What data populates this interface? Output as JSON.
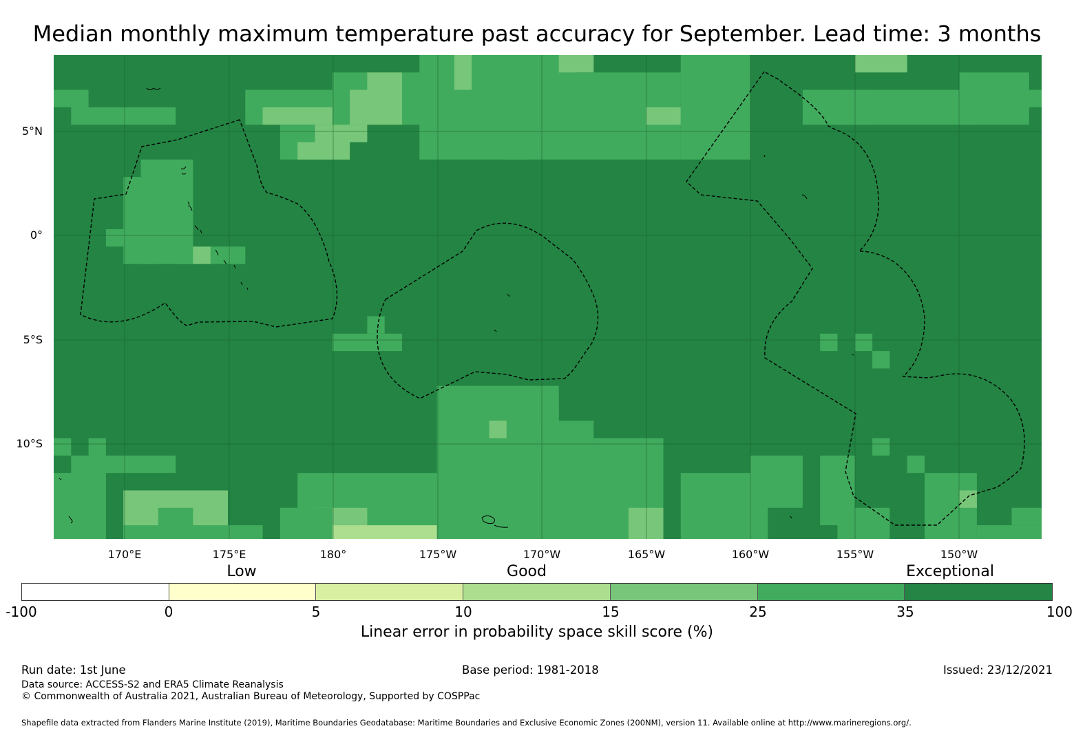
{
  "title": "Median monthly maximum temperature past accuracy for September. Lead time: 3 months",
  "map": {
    "lat_labels": [
      "5°N",
      "0°",
      "5°S",
      "10°S"
    ],
    "lon_labels": [
      "170°E",
      "175°E",
      "180°",
      "175°W",
      "170°W",
      "165°W",
      "160°W",
      "155°W",
      "150°W"
    ],
    "dominant_category": "35 to 100"
  },
  "legend": {
    "categories": [
      "Low",
      "Good",
      "Exceptional"
    ],
    "ticks": [
      "-100",
      "0",
      "5",
      "10",
      "15",
      "25",
      "35",
      "100"
    ],
    "colors": [
      "#ffffff",
      "#ffffcc",
      "#d9f0a3",
      "#addd8e",
      "#78c679",
      "#41ab5d",
      "#238443"
    ],
    "title": "Linear error in probability space skill score (%)"
  },
  "footer": {
    "run_date": "Run date: 1st June",
    "base_period": "Base period: 1981-2018",
    "issued": "Issued: 23/12/2021",
    "data_source": "Data source: ACCESS-S2 and ERA5 Climate Reanalysis",
    "copyright": "© Commonwealth of Australia 2021, Australian Bureau of Meteorology, Supported by COSPPac",
    "shapefile": "Shapefile data extracted from Flanders Marine Institute (2019), Maritime Boundaries Geodatabase: Maritime Boundaries and Exclusive Economic Zones (200NM), version 11. Available online at http://www.marineregions.org/."
  }
}
